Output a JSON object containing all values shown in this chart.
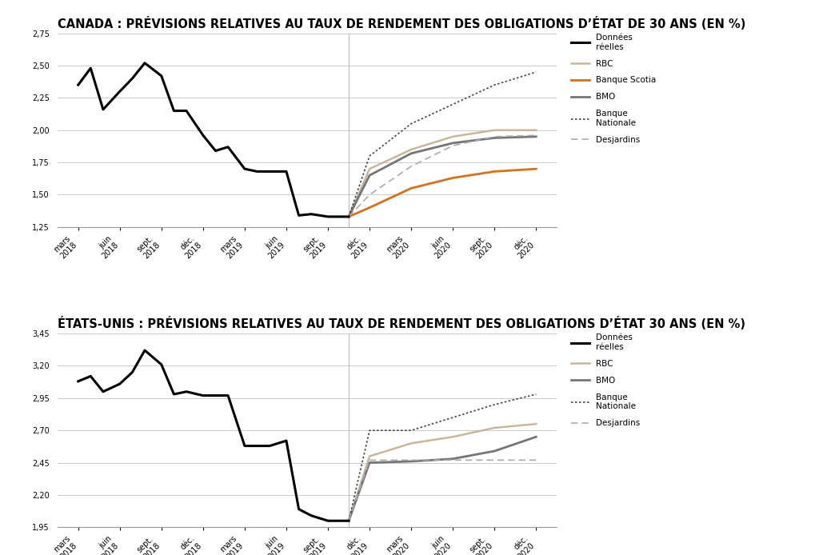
{
  "title1": "CANADA : PRÉVISIONS RELATIVES AU TAUX DE RENDEMENT DES OBLIGATIONS D’ÉTAT DE 30 ANS (EN %)",
  "title2": "ÉTATS-UNIS : PRÉVISIONS RELATIVES AU TAUX DE RENDEMENT DES OBLIGATIONS D’ÉTAT 30 ANS (EN %)",
  "xtick_labels": [
    "mars\n2018",
    "juin\n2018",
    "sept.\n2018",
    "déc.\n2018",
    "mars\n2019",
    "juin\n2019",
    "sept.\n2019",
    "déc.\n2019",
    "mars\n2020",
    "juin\n2020",
    "sept.\n2020",
    "déc.\n2020"
  ],
  "canada": {
    "ylim": [
      1.25,
      2.75
    ],
    "yticks": [
      1.25,
      1.5,
      1.75,
      2.0,
      2.25,
      2.5,
      2.75
    ],
    "donnees_x": [
      0,
      0.3,
      0.6,
      1.0,
      1.3,
      1.6,
      2.0,
      2.3,
      2.6,
      3.0,
      3.3,
      3.6,
      4.0,
      4.3,
      4.6,
      5.0,
      5.3,
      5.6,
      6.0,
      6.3,
      6.5
    ],
    "donnees_y": [
      2.35,
      2.48,
      2.16,
      2.3,
      2.4,
      2.52,
      2.42,
      2.15,
      2.15,
      1.96,
      1.84,
      1.87,
      1.7,
      1.68,
      1.68,
      1.68,
      1.34,
      1.35,
      1.33,
      1.33,
      1.33
    ],
    "rbc_x": [
      6.5,
      7,
      8,
      9,
      10,
      11
    ],
    "rbc_y": [
      1.33,
      1.7,
      1.85,
      1.95,
      2.0,
      2.0
    ],
    "banque_scotia_x": [
      6.5,
      7,
      8,
      9,
      10,
      11
    ],
    "banque_scotia_y": [
      1.33,
      1.4,
      1.55,
      1.63,
      1.68,
      1.7
    ],
    "bmo_x": [
      6.5,
      7,
      8,
      9,
      10,
      11
    ],
    "bmo_y": [
      1.33,
      1.65,
      1.82,
      1.9,
      1.94,
      1.95
    ],
    "banque_nationale_x": [
      6.5,
      7,
      8,
      9,
      10,
      11
    ],
    "banque_nationale_y": [
      1.33,
      1.8,
      2.05,
      2.2,
      2.35,
      2.45
    ],
    "desjardins_x": [
      6.5,
      7,
      8,
      9,
      10,
      11
    ],
    "desjardins_y": [
      1.33,
      1.5,
      1.72,
      1.88,
      1.95,
      1.96
    ]
  },
  "usa": {
    "ylim": [
      1.95,
      3.45
    ],
    "yticks": [
      1.95,
      2.2,
      2.45,
      2.7,
      2.95,
      3.2,
      3.45
    ],
    "donnees_x": [
      0,
      0.3,
      0.6,
      1.0,
      1.3,
      1.6,
      2.0,
      2.3,
      2.6,
      3.0,
      3.3,
      3.6,
      4.0,
      4.3,
      4.6,
      5.0,
      5.3,
      5.6,
      6.0,
      6.3,
      6.5
    ],
    "donnees_y": [
      3.08,
      3.12,
      3.0,
      3.06,
      3.15,
      3.32,
      3.21,
      2.98,
      3.0,
      2.97,
      2.97,
      2.97,
      2.58,
      2.58,
      2.58,
      2.62,
      2.09,
      2.04,
      2.0,
      2.0,
      2.0
    ],
    "rbc_x": [
      6.5,
      7,
      8,
      9,
      10,
      11
    ],
    "rbc_y": [
      2.0,
      2.5,
      2.6,
      2.65,
      2.72,
      2.75
    ],
    "bmo_x": [
      6.5,
      7,
      8,
      9,
      10,
      11
    ],
    "bmo_y": [
      2.0,
      2.45,
      2.46,
      2.48,
      2.54,
      2.65
    ],
    "banque_nationale_x": [
      6.5,
      7,
      8,
      9,
      10,
      11
    ],
    "banque_nationale_y": [
      2.0,
      2.7,
      2.7,
      2.8,
      2.9,
      2.98
    ],
    "desjardins_x": [
      6.5,
      7,
      8,
      9,
      10,
      11
    ],
    "desjardins_y": [
      2.0,
      2.47,
      2.47,
      2.47,
      2.47,
      2.47
    ]
  },
  "colors": {
    "donnees_reelles": "#000000",
    "rbc": "#c8b89a",
    "banque_scotia": "#d4711a",
    "bmo": "#757575",
    "banque_nationale": "#444444",
    "desjardins": "#aaaaaa"
  },
  "background": "#ffffff",
  "title_fontsize": 10.5,
  "tick_fontsize": 7
}
